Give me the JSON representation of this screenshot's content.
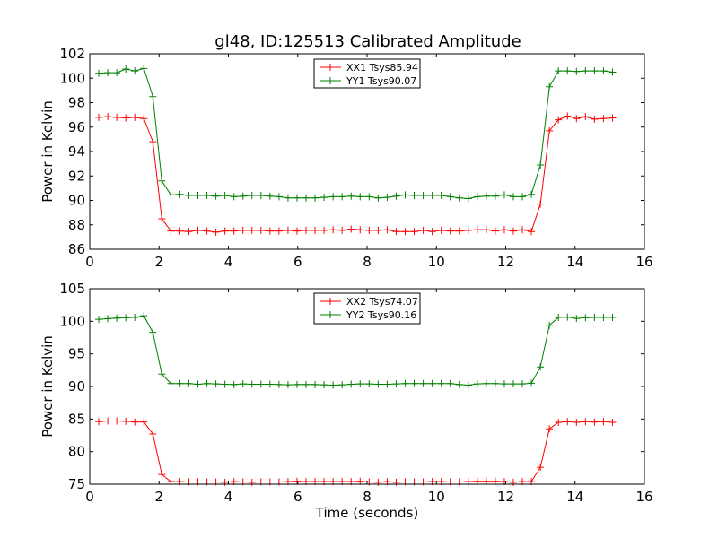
{
  "title": "gl48, ID:125513 Calibrated Amplitude",
  "chart_data": [
    {
      "type": "line",
      "ylabel": "Power in Kelvin",
      "xlabel": "",
      "xlim": [
        0,
        16
      ],
      "ylim": [
        86,
        102
      ],
      "xticks": [
        0,
        2,
        4,
        6,
        8,
        10,
        12,
        14,
        16
      ],
      "yticks": [
        86,
        88,
        90,
        92,
        94,
        96,
        98,
        100,
        102
      ],
      "grid": false,
      "legend_position": "top-center",
      "x": [
        0.26,
        0.52,
        0.78,
        1.04,
        1.3,
        1.56,
        1.82,
        2.08,
        2.34,
        2.6,
        2.86,
        3.12,
        3.38,
        3.64,
        3.9,
        4.16,
        4.42,
        4.68,
        4.94,
        5.2,
        5.46,
        5.72,
        5.98,
        6.24,
        6.5,
        6.76,
        7.02,
        7.28,
        7.54,
        7.8,
        8.06,
        8.32,
        8.58,
        8.84,
        9.1,
        9.36,
        9.62,
        9.88,
        10.14,
        10.4,
        10.66,
        10.92,
        11.18,
        11.44,
        11.7,
        11.96,
        12.22,
        12.48,
        12.74,
        13.0,
        13.26,
        13.52,
        13.78,
        14.04,
        14.3,
        14.56,
        14.82,
        15.08
      ],
      "series": [
        {
          "name": "XX1 Tsys85.94",
          "color": "#ff0000",
          "values": [
            96.8,
            96.85,
            96.8,
            96.75,
            96.8,
            96.7,
            94.8,
            88.5,
            87.5,
            87.5,
            87.45,
            87.55,
            87.5,
            87.4,
            87.5,
            87.5,
            87.55,
            87.55,
            87.55,
            87.5,
            87.5,
            87.55,
            87.5,
            87.55,
            87.55,
            87.55,
            87.6,
            87.55,
            87.65,
            87.6,
            87.55,
            87.55,
            87.6,
            87.45,
            87.45,
            87.45,
            87.55,
            87.45,
            87.55,
            87.5,
            87.5,
            87.55,
            87.6,
            87.6,
            87.5,
            87.6,
            87.5,
            87.6,
            87.45,
            89.7,
            95.7,
            96.6,
            96.9,
            96.7,
            96.85,
            96.65,
            96.7,
            96.75
          ]
        },
        {
          "name": "YY1 Tsys90.07",
          "color": "#008000",
          "values": [
            100.4,
            100.45,
            100.45,
            100.75,
            100.6,
            100.8,
            98.5,
            91.6,
            90.45,
            90.5,
            90.4,
            90.4,
            90.4,
            90.35,
            90.4,
            90.3,
            90.35,
            90.4,
            90.4,
            90.35,
            90.3,
            90.2,
            90.2,
            90.2,
            90.2,
            90.25,
            90.3,
            90.3,
            90.35,
            90.3,
            90.3,
            90.2,
            90.25,
            90.35,
            90.45,
            90.4,
            90.4,
            90.4,
            90.4,
            90.3,
            90.2,
            90.15,
            90.3,
            90.35,
            90.35,
            90.45,
            90.3,
            90.3,
            90.5,
            92.9,
            99.3,
            100.6,
            100.6,
            100.55,
            100.6,
            100.6,
            100.6,
            100.5
          ]
        }
      ]
    },
    {
      "type": "line",
      "ylabel": "Power in Kelvin",
      "xlabel": "Time (seconds)",
      "xlim": [
        0,
        16
      ],
      "ylim": [
        75,
        105
      ],
      "xticks": [
        0,
        2,
        4,
        6,
        8,
        10,
        12,
        14,
        16
      ],
      "yticks": [
        75,
        80,
        85,
        90,
        95,
        100,
        105
      ],
      "grid": false,
      "legend_position": "top-center",
      "x": [
        0.26,
        0.52,
        0.78,
        1.04,
        1.3,
        1.56,
        1.82,
        2.08,
        2.34,
        2.6,
        2.86,
        3.12,
        3.38,
        3.64,
        3.9,
        4.16,
        4.42,
        4.68,
        4.94,
        5.2,
        5.46,
        5.72,
        5.98,
        6.24,
        6.5,
        6.76,
        7.02,
        7.28,
        7.54,
        7.8,
        8.06,
        8.32,
        8.58,
        8.84,
        9.1,
        9.36,
        9.62,
        9.88,
        10.14,
        10.4,
        10.66,
        10.92,
        11.18,
        11.44,
        11.7,
        11.96,
        12.22,
        12.48,
        12.74,
        13.0,
        13.26,
        13.52,
        13.78,
        14.04,
        14.3,
        14.56,
        14.82,
        15.08
      ],
      "series": [
        {
          "name": "XX2 Tsys74.07",
          "color": "#ff0000",
          "values": [
            84.6,
            84.7,
            84.7,
            84.65,
            84.55,
            84.55,
            82.7,
            76.5,
            75.4,
            75.4,
            75.35,
            75.35,
            75.35,
            75.35,
            75.3,
            75.4,
            75.35,
            75.3,
            75.35,
            75.35,
            75.35,
            75.4,
            75.45,
            75.4,
            75.4,
            75.4,
            75.4,
            75.4,
            75.4,
            75.45,
            75.35,
            75.3,
            75.4,
            75.3,
            75.35,
            75.35,
            75.35,
            75.4,
            75.4,
            75.35,
            75.35,
            75.4,
            75.45,
            75.45,
            75.45,
            75.4,
            75.3,
            75.4,
            75.4,
            77.6,
            83.5,
            84.5,
            84.6,
            84.5,
            84.6,
            84.55,
            84.6,
            84.5
          ]
        },
        {
          "name": "YY2 Tsys90.16",
          "color": "#008000",
          "values": [
            100.3,
            100.4,
            100.5,
            100.55,
            100.6,
            100.85,
            98.3,
            91.9,
            90.45,
            90.45,
            90.45,
            90.35,
            90.45,
            90.4,
            90.35,
            90.3,
            90.4,
            90.35,
            90.35,
            90.35,
            90.3,
            90.25,
            90.3,
            90.3,
            90.3,
            90.25,
            90.2,
            90.25,
            90.35,
            90.4,
            90.4,
            90.35,
            90.35,
            90.4,
            90.45,
            90.45,
            90.45,
            90.45,
            90.45,
            90.45,
            90.3,
            90.2,
            90.4,
            90.45,
            90.45,
            90.4,
            90.4,
            90.4,
            90.5,
            93.0,
            99.4,
            100.6,
            100.65,
            100.45,
            100.55,
            100.6,
            100.6,
            100.6
          ]
        }
      ]
    }
  ]
}
